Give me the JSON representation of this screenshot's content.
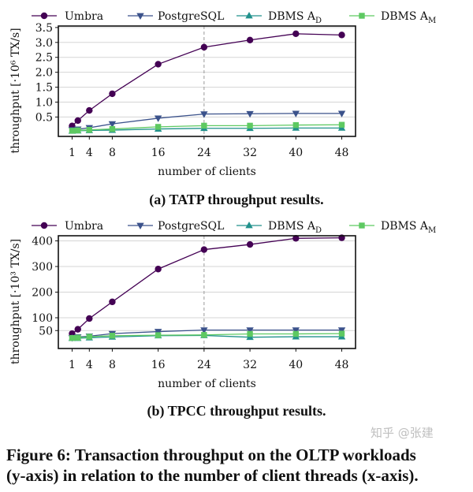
{
  "chart_data": [
    {
      "type": "line",
      "title": "",
      "xlabel": "number of clients",
      "ylabel": "throughput [·10⁶ TX/s]",
      "x": [
        1,
        2,
        4,
        8,
        16,
        24,
        32,
        40,
        48
      ],
      "xticks": [
        1,
        4,
        8,
        16,
        24,
        32,
        40,
        48
      ],
      "yticks": [
        0.5,
        1.0,
        1.5,
        2.0,
        2.5,
        3.0,
        3.5
      ],
      "ytick_labels": [
        "0.5",
        "1.0",
        "1.5",
        "2.0",
        "2.5",
        "3.0",
        "3.5"
      ],
      "ylim": [
        -0.15,
        3.55
      ],
      "xlim": [
        -1.4,
        50.4
      ],
      "grid": "horizontal",
      "vline_x": 24,
      "legend": "top",
      "series": [
        {
          "name": "Umbra",
          "subscript": "",
          "marker": "circle",
          "color": "#440154",
          "values": [
            0.2,
            0.38,
            0.72,
            1.28,
            2.27,
            2.84,
            3.08,
            3.29,
            3.25
          ]
        },
        {
          "name": "PostgreSQL",
          "subscript": "",
          "marker": "triangle-down",
          "color": "#3b528b",
          "values": [
            0.07,
            0.09,
            0.14,
            0.27,
            0.46,
            0.6,
            0.61,
            0.62,
            0.62
          ]
        },
        {
          "name": "DBMS A",
          "subscript": "D",
          "marker": "triangle-up",
          "color": "#21918c",
          "values": [
            0.03,
            0.04,
            0.05,
            0.06,
            0.1,
            0.12,
            0.12,
            0.13,
            0.13
          ]
        },
        {
          "name": "DBMS A",
          "subscript": "M",
          "marker": "square",
          "color": "#5ec962",
          "values": [
            0.04,
            0.05,
            0.07,
            0.1,
            0.17,
            0.21,
            0.21,
            0.23,
            0.24
          ]
        }
      ]
    },
    {
      "type": "line",
      "title": "",
      "xlabel": "number of clients",
      "ylabel": "throughput [·10³ TX/s]",
      "x": [
        1,
        2,
        4,
        8,
        16,
        24,
        32,
        40,
        48
      ],
      "xticks": [
        1,
        4,
        8,
        16,
        24,
        32,
        40,
        48
      ],
      "yticks": [
        50,
        100,
        200,
        300,
        400
      ],
      "ytick_labels": [
        "50",
        "100",
        "200",
        "300",
        "400"
      ],
      "ylim": [
        -20,
        420
      ],
      "xlim": [
        -1.4,
        50.4
      ],
      "grid": "horizontal",
      "vline_x": 24,
      "legend": "top",
      "series": [
        {
          "name": "Umbra",
          "subscript": "",
          "marker": "circle",
          "color": "#440154",
          "values": [
            38,
            55,
            97,
            162,
            290,
            366,
            386,
            410,
            412
          ]
        },
        {
          "name": "PostgreSQL",
          "subscript": "",
          "marker": "triangle-down",
          "color": "#3b528b",
          "values": [
            22,
            25,
            28,
            38,
            46,
            52,
            52,
            52,
            52
          ]
        },
        {
          "name": "DBMS A",
          "subscript": "D",
          "marker": "triangle-up",
          "color": "#21918c",
          "values": [
            20,
            20,
            22,
            25,
            30,
            31,
            24,
            26,
            26
          ]
        },
        {
          "name": "DBMS A",
          "subscript": "M",
          "marker": "square",
          "color": "#5ec962",
          "values": [
            21,
            22,
            26,
            30,
            32,
            33,
            37,
            37,
            38
          ]
        }
      ]
    }
  ],
  "captions": {
    "a": "(a) TATP throughput results.",
    "b": "(b) TPCC throughput results.",
    "figure_line1": "Figure 6: Transaction throughput on the OLTP workloads",
    "figure_line2": "(y-axis) in relation to the number of client threads (x-axis)."
  },
  "watermark": "知乎 @张建"
}
